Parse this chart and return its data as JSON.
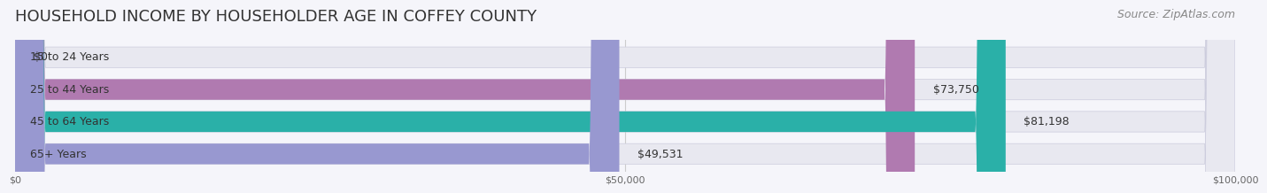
{
  "title": "HOUSEHOLD INCOME BY HOUSEHOLDER AGE IN COFFEY COUNTY",
  "source": "Source: ZipAtlas.com",
  "categories": [
    "15 to 24 Years",
    "25 to 44 Years",
    "45 to 64 Years",
    "65+ Years"
  ],
  "values": [
    0,
    73750,
    81198,
    49531
  ],
  "labels": [
    "$0",
    "$73,750",
    "$81,198",
    "$49,531"
  ],
  "bar_colors": [
    "#a8c8e8",
    "#b07ab0",
    "#2ab0a8",
    "#9898d0"
  ],
  "bar_bg_color": "#e8e8f0",
  "xlim": [
    0,
    100000
  ],
  "xticks": [
    0,
    50000,
    100000
  ],
  "xtick_labels": [
    "$0",
    "$50,000",
    "$100,000"
  ],
  "title_fontsize": 13,
  "source_fontsize": 9,
  "label_fontsize": 9,
  "category_fontsize": 9,
  "bar_height": 0.62,
  "background_color": "#f5f5fa"
}
